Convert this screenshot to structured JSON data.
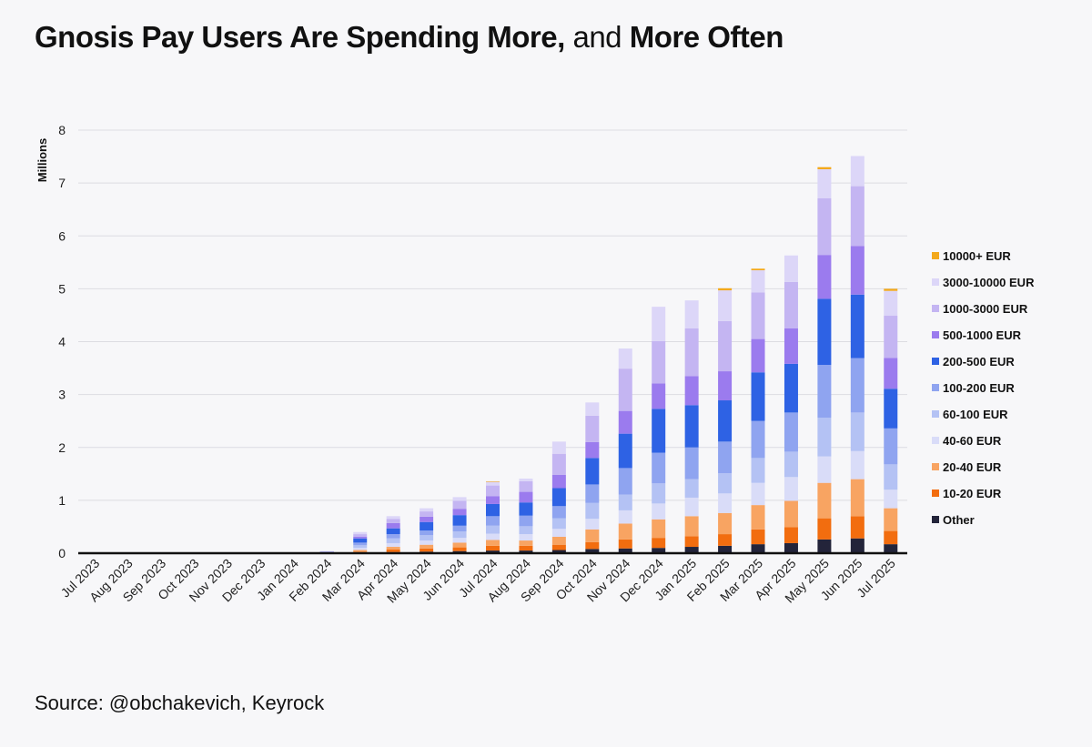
{
  "title": {
    "part1": "Gnosis Pay Users Are Spending More,",
    "part2": "and",
    "part3": "More Often"
  },
  "source": "Source: @obchakevich, Keyrock",
  "chart_data": {
    "type": "bar",
    "stacked": true,
    "title": "Gnosis Pay Users Are Spending More, and More Often",
    "ylabel": "Millions",
    "xlabel": "",
    "ylim": [
      0,
      8
    ],
    "yticks": [
      0,
      1,
      2,
      3,
      4,
      5,
      6,
      7,
      8
    ],
    "grid": true,
    "legend_position": "right",
    "categories": [
      "Jul 2023",
      "Aug 2023",
      "Sep 2023",
      "Oct 2023",
      "Nov 2023",
      "Dec 2023",
      "Jan 2024",
      "Feb 2024",
      "Mar 2024",
      "Apr 2024",
      "May 2024",
      "Jun 2024",
      "Jul 2024",
      "Aug 2024",
      "Sep 2024",
      "Oct 2024",
      "Nov 2024",
      "Dec 2024",
      "Jan 2025",
      "Feb 2025",
      "Mar 2025",
      "Apr 2025",
      "May 2025",
      "Jun 2025",
      "Jul 2025"
    ],
    "series": [
      {
        "name": "Other",
        "color": "#23243a",
        "values": [
          0,
          0,
          0,
          0,
          0,
          0,
          0,
          0,
          0.01,
          0.02,
          0.03,
          0.04,
          0.05,
          0.05,
          0.06,
          0.08,
          0.09,
          0.1,
          0.12,
          0.14,
          0.17,
          0.19,
          0.26,
          0.28,
          0.17
        ]
      },
      {
        "name": "10-20 EUR",
        "color": "#f26d0f",
        "values": [
          0,
          0,
          0,
          0,
          0,
          0,
          0,
          0.005,
          0.02,
          0.05,
          0.06,
          0.07,
          0.09,
          0.09,
          0.1,
          0.13,
          0.17,
          0.19,
          0.2,
          0.22,
          0.28,
          0.3,
          0.4,
          0.42,
          0.25
        ]
      },
      {
        "name": "20-40 EUR",
        "color": "#f8a462",
        "values": [
          0,
          0,
          0,
          0,
          0,
          0,
          0,
          0.005,
          0.03,
          0.05,
          0.07,
          0.09,
          0.11,
          0.1,
          0.15,
          0.24,
          0.3,
          0.35,
          0.38,
          0.4,
          0.46,
          0.5,
          0.67,
          0.7,
          0.43
        ]
      },
      {
        "name": "40-60 EUR",
        "color": "#d9dcf8",
        "values": [
          0,
          0,
          0,
          0,
          0,
          0,
          0,
          0.005,
          0.04,
          0.07,
          0.08,
          0.09,
          0.12,
          0.12,
          0.15,
          0.2,
          0.25,
          0.3,
          0.35,
          0.37,
          0.42,
          0.45,
          0.5,
          0.53,
          0.35
        ]
      },
      {
        "name": "60-100 EUR",
        "color": "#b4c2f4",
        "values": [
          0,
          0,
          0,
          0,
          0,
          0,
          0,
          0.005,
          0.05,
          0.09,
          0.1,
          0.12,
          0.15,
          0.15,
          0.2,
          0.3,
          0.3,
          0.38,
          0.35,
          0.38,
          0.47,
          0.48,
          0.73,
          0.73,
          0.48
        ]
      },
      {
        "name": "100-200 EUR",
        "color": "#8fa4f0",
        "values": [
          0,
          0,
          0,
          0,
          0,
          0,
          0,
          0.005,
          0.05,
          0.08,
          0.09,
          0.11,
          0.18,
          0.2,
          0.23,
          0.35,
          0.5,
          0.58,
          0.6,
          0.6,
          0.7,
          0.74,
          1.0,
          1.03,
          0.68
        ]
      },
      {
        "name": "200-500 EUR",
        "color": "#2e62e4",
        "values": [
          0,
          0,
          0,
          0,
          0,
          0,
          0,
          0.005,
          0.08,
          0.11,
          0.16,
          0.2,
          0.23,
          0.25,
          0.34,
          0.5,
          0.65,
          0.83,
          0.8,
          0.78,
          0.92,
          0.92,
          1.25,
          1.2,
          0.75
        ]
      },
      {
        "name": "500-1000 EUR",
        "color": "#9b7bee",
        "values": [
          0,
          0,
          0,
          0,
          0,
          0,
          0,
          0.003,
          0.03,
          0.1,
          0.1,
          0.12,
          0.15,
          0.2,
          0.25,
          0.3,
          0.43,
          0.48,
          0.55,
          0.55,
          0.63,
          0.67,
          0.83,
          0.92,
          0.58
        ]
      },
      {
        "name": "1000-3000 EUR",
        "color": "#c4b5f2",
        "values": [
          0,
          0,
          0,
          0,
          0,
          0,
          0,
          0.003,
          0.05,
          0.08,
          0.1,
          0.15,
          0.2,
          0.2,
          0.4,
          0.5,
          0.8,
          0.8,
          0.9,
          0.95,
          0.88,
          0.88,
          1.07,
          1.13,
          0.8
        ]
      },
      {
        "name": "3000-10000 EUR",
        "color": "#dcd6f8",
        "values": [
          0,
          0,
          0,
          0,
          0,
          0,
          0,
          0.002,
          0.04,
          0.05,
          0.06,
          0.07,
          0.07,
          0.05,
          0.23,
          0.25,
          0.38,
          0.65,
          0.53,
          0.58,
          0.42,
          0.5,
          0.55,
          0.57,
          0.47
        ]
      },
      {
        "name": "10000+ EUR",
        "color": "#f3a91c",
        "values": [
          0,
          0,
          0,
          0,
          0,
          0,
          0,
          0,
          0,
          0,
          0,
          0,
          0.01,
          0,
          0,
          0,
          0,
          0,
          0,
          0.04,
          0.03,
          0,
          0.04,
          0,
          0.04
        ]
      }
    ]
  }
}
